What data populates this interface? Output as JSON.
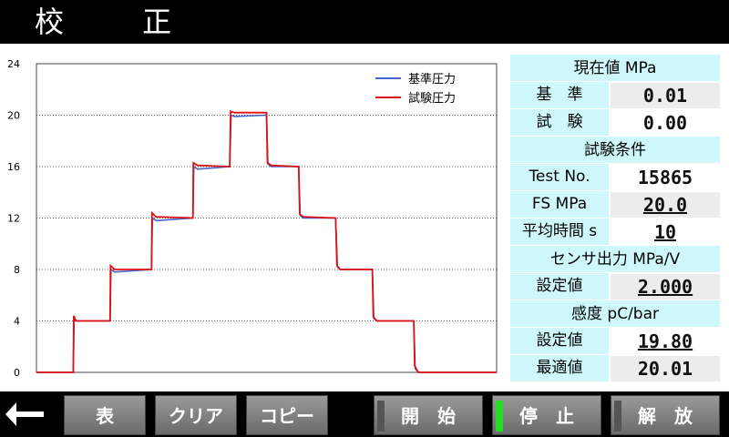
{
  "title": "校 正",
  "chart_data": {
    "type": "line",
    "ylim": [
      0,
      24
    ],
    "yticks": [
      "0",
      "4",
      "8",
      "12",
      "16",
      "20",
      "24"
    ],
    "xlim": [
      0,
      100
    ],
    "legend_position": "top-right",
    "series": [
      {
        "name": "基準圧力",
        "color": "#4466cc",
        "x": [
          0,
          8,
          8.2,
          8.8,
          16,
          16.2,
          17,
          25,
          25.2,
          26,
          34,
          34.2,
          35,
          42,
          42.3,
          43,
          50,
          50.3,
          51,
          57,
          57.3,
          58,
          65,
          65.4,
          66,
          73,
          73.3,
          74,
          82,
          82.3,
          83,
          91,
          91.3,
          92,
          100
        ],
        "y": [
          0,
          0,
          4.2,
          4,
          4,
          8,
          7.8,
          8,
          12,
          11.8,
          12,
          16,
          15.8,
          16,
          20,
          19.9,
          20,
          16.2,
          16,
          16,
          12.2,
          12,
          12,
          8.2,
          8,
          8,
          4.2,
          4,
          4,
          0.3,
          0,
          0,
          0,
          0,
          0
        ]
      },
      {
        "name": "試験圧力",
        "color": "#dd1111",
        "x": [
          0,
          8,
          8.1,
          8.6,
          16,
          16.1,
          17,
          25,
          25.1,
          26,
          34,
          34.1,
          35,
          42,
          42.2,
          43,
          50,
          50.2,
          51,
          57,
          57.2,
          58,
          65,
          65.3,
          66,
          73,
          73.2,
          74,
          82,
          82.2,
          83,
          91,
          91.2,
          92,
          100
        ],
        "y": [
          0,
          0,
          4.4,
          4,
          4,
          8.3,
          8,
          8,
          12.4,
          12.1,
          12,
          16.3,
          16.1,
          16,
          20.3,
          20.2,
          20.2,
          16.3,
          16.1,
          16,
          12.3,
          12.1,
          12,
          8.3,
          8,
          8,
          4.3,
          4,
          4,
          0.5,
          0,
          0,
          0,
          0,
          0
        ]
      }
    ]
  },
  "panel": {
    "current_header": "現在値 MPa",
    "ref_label": "基　準",
    "ref_value": "0.01",
    "test_label": "試　験",
    "test_value": "0.00",
    "cond_header": "試験条件",
    "testno_label": "Test No.",
    "testno_value": "15865",
    "fs_label": "FS MPa",
    "fs_value": "20.0",
    "avg_label": "平均時間 s",
    "avg_value": "10",
    "sensor_header": "センサ出力 MPa/V",
    "sensor_set_label": "設定値",
    "sensor_set_value": "2.000",
    "sens_header": "感度 pC/bar",
    "sens_set_label": "設定値",
    "sens_set_value": "19.80",
    "sens_opt_label": "最適値",
    "sens_opt_value": "20.01"
  },
  "buttons": {
    "table": "表",
    "clear": "クリア",
    "copy": "コピー",
    "start": "開　始",
    "stop": "停　止",
    "release": "解　放"
  },
  "colors": {
    "accent_cyan": "#cef8fb",
    "indicator_on": "#22dd22"
  },
  "icons": {
    "back": "left-arrow-icon"
  }
}
